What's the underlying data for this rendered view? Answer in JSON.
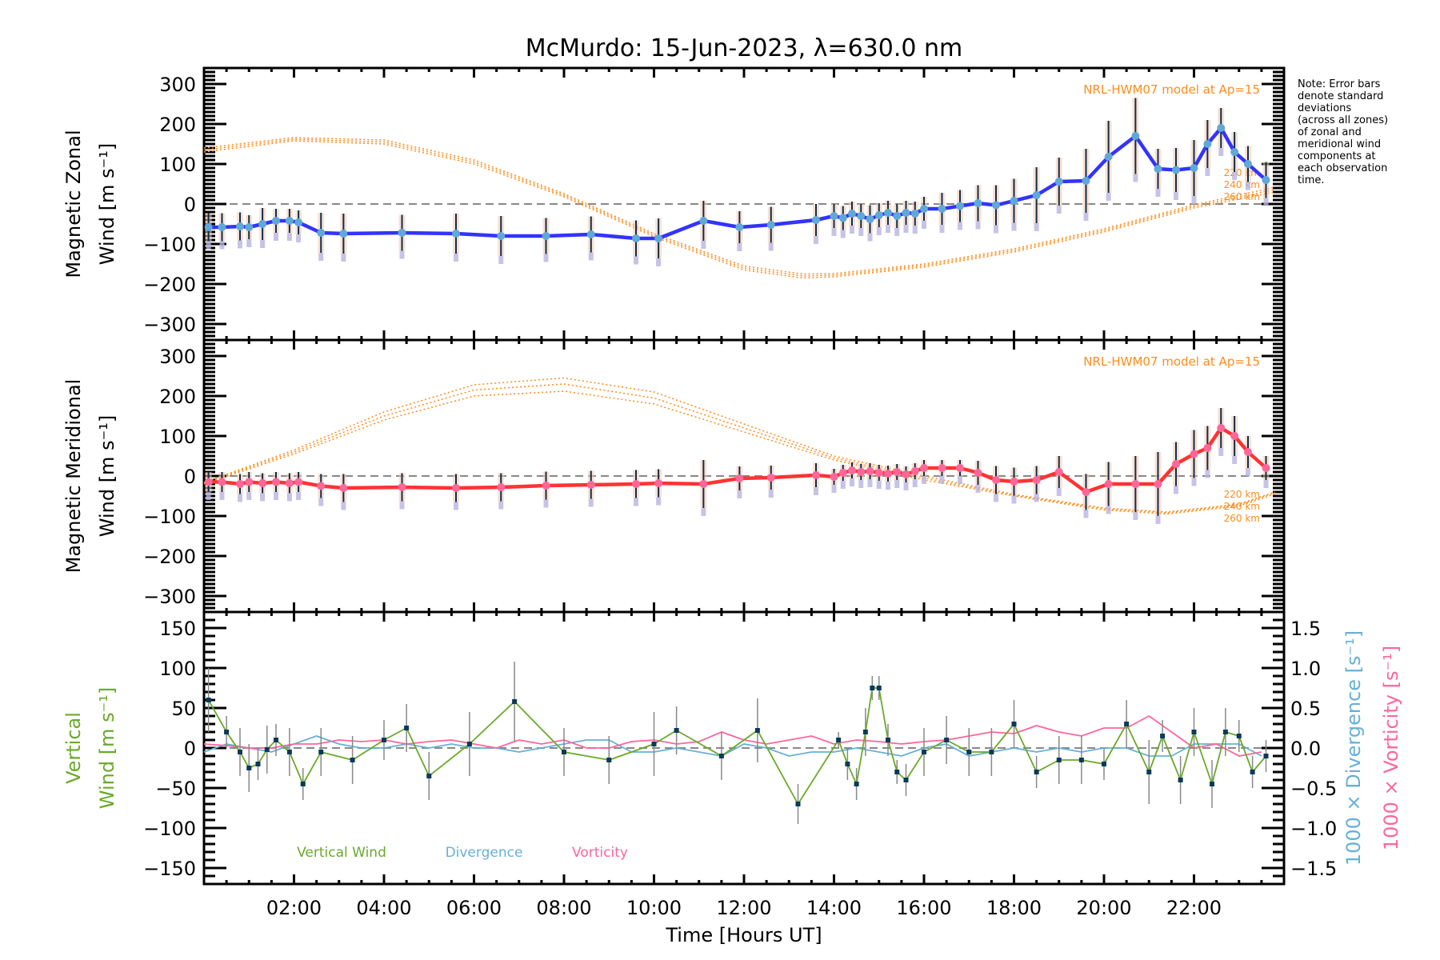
{
  "chart_data": {
    "type": "line",
    "title": "McMurdo: 15-Jun-2023, λ=630.0 nm",
    "xlabel": "Time [Hours UT]",
    "xlim": [
      0,
      24
    ],
    "x_tick_labels": [
      "02:00",
      "04:00",
      "06:00",
      "08:00",
      "10:00",
      "12:00",
      "14:00",
      "16:00",
      "18:00",
      "20:00",
      "22:00"
    ],
    "x_tick_values": [
      2,
      4,
      6,
      8,
      10,
      12,
      14,
      16,
      18,
      20,
      22
    ],
    "note": [
      "Note: Error bars",
      "denote standard",
      "deviations",
      "(across all zones)",
      "of zonal and",
      "meridional wind",
      "components at",
      "each observation",
      "time."
    ],
    "colors": {
      "zonal": "#3333ff",
      "meridional": "#ff3333",
      "marker_zonal": "#5fa8d8",
      "marker_meridional": "#ff6699",
      "model": "#ff8c1a",
      "vertical": "#6aaa2a",
      "divergence": "#66b0d8",
      "vorticity": "#ff6699",
      "errorbar": "#0b2e4a",
      "zone_points": "#b8b4e0",
      "zero_line": "#888888"
    },
    "panels": [
      {
        "id": "zonal",
        "ylabel_line1": "Magnetic Zonal",
        "ylabel_line2": "Wind [m s⁻¹]",
        "ylim": [
          -340,
          340
        ],
        "y_ticks": [
          300,
          200,
          100,
          0,
          -100,
          -200,
          -300
        ],
        "y_tick_labels": [
          "300",
          "200",
          "100",
          "0",
          "−100",
          "−200",
          "−300"
        ],
        "model_label": "NRL-HWM07 model at Ap=15",
        "model_altitudes": [
          "220 km",
          "240 km",
          "260 km"
        ],
        "series": {
          "name": "Magnetic Zonal Wind",
          "x": [
            0.1,
            0.4,
            0.8,
            1.0,
            1.3,
            1.6,
            1.9,
            2.1,
            2.6,
            3.1,
            4.4,
            5.6,
            6.6,
            7.6,
            8.6,
            9.6,
            10.1,
            11.1,
            11.9,
            12.6,
            13.6,
            14.0,
            14.2,
            14.4,
            14.6,
            14.8,
            15.0,
            15.2,
            15.4,
            15.6,
            15.8,
            16.0,
            16.4,
            16.8,
            17.2,
            17.6,
            18.0,
            18.5,
            19.0,
            19.6,
            20.1,
            20.7,
            21.2,
            21.6,
            22.0,
            22.3,
            22.6,
            22.9,
            23.2,
            23.6
          ],
          "y": [
            -58,
            -58,
            -56,
            -58,
            -50,
            -42,
            -42,
            -46,
            -72,
            -74,
            -72,
            -74,
            -80,
            -80,
            -76,
            -86,
            -86,
            -42,
            -58,
            -52,
            -40,
            -30,
            -35,
            -24,
            -30,
            -38,
            -28,
            -22,
            -30,
            -22,
            -24,
            -12,
            -12,
            -5,
            2,
            -3,
            8,
            22,
            56,
            58,
            118,
            170,
            88,
            85,
            90,
            150,
            190,
            130,
            100,
            60
          ],
          "err": [
            35,
            35,
            35,
            30,
            40,
            30,
            30,
            30,
            50,
            50,
            45,
            50,
            50,
            45,
            45,
            45,
            50,
            50,
            40,
            45,
            40,
            30,
            30,
            30,
            30,
            35,
            30,
            30,
            30,
            30,
            30,
            30,
            40,
            40,
            45,
            50,
            55,
            70,
            60,
            80,
            90,
            95,
            50,
            55,
            70,
            60,
            50,
            50,
            45,
            45
          ]
        },
        "model": {
          "x": [
            0,
            2,
            4,
            6,
            8,
            10,
            12,
            13.3,
            14,
            16,
            18,
            20,
            22,
            23.8
          ],
          "y220": [
            130,
            158,
            150,
            100,
            18,
            -82,
            -165,
            -185,
            -182,
            -158,
            -120,
            -70,
            -10,
            30
          ],
          "y240": [
            135,
            162,
            155,
            105,
            22,
            -78,
            -160,
            -180,
            -178,
            -154,
            -116,
            -66,
            -6,
            36
          ],
          "y260": [
            140,
            166,
            160,
            110,
            26,
            -74,
            -155,
            -175,
            -174,
            -150,
            -112,
            -62,
            -2,
            42
          ]
        }
      },
      {
        "id": "meridional",
        "ylabel_line1": "Magnetic Meridional",
        "ylabel_line2": "Wind [m s⁻¹]",
        "ylim": [
          -340,
          340
        ],
        "y_ticks": [
          300,
          200,
          100,
          0,
          -100,
          -200,
          -300
        ],
        "y_tick_labels": [
          "300",
          "200",
          "100",
          "0",
          "−100",
          "−200",
          "−300"
        ],
        "model_label": "NRL-HWM07 model at Ap=15",
        "model_altitudes": [
          "220 km",
          "240 km",
          "260 km"
        ],
        "series": {
          "name": "Magnetic Meridional Wind",
          "x": [
            0.1,
            0.4,
            0.8,
            1.0,
            1.3,
            1.6,
            1.9,
            2.1,
            2.6,
            3.1,
            4.4,
            5.6,
            6.6,
            7.6,
            8.6,
            9.6,
            10.1,
            11.1,
            11.9,
            12.6,
            13.6,
            14.0,
            14.2,
            14.4,
            14.6,
            14.8,
            15.0,
            15.2,
            15.4,
            15.6,
            15.8,
            16.0,
            16.4,
            16.8,
            17.2,
            17.6,
            18.0,
            18.5,
            19.0,
            19.6,
            20.1,
            20.7,
            21.2,
            21.6,
            22.0,
            22.3,
            22.6,
            22.9,
            23.2,
            23.6
          ],
          "y": [
            -15,
            -15,
            -20,
            -15,
            -18,
            -15,
            -18,
            -15,
            -25,
            -30,
            -28,
            -30,
            -28,
            -24,
            -22,
            -20,
            -18,
            -20,
            -6,
            -4,
            2,
            -2,
            8,
            14,
            10,
            12,
            8,
            6,
            10,
            4,
            12,
            20,
            20,
            20,
            8,
            -10,
            -14,
            -10,
            10,
            -40,
            -20,
            -20,
            -20,
            30,
            55,
            70,
            120,
            100,
            60,
            20
          ],
          "err": [
            25,
            25,
            25,
            25,
            25,
            25,
            25,
            25,
            30,
            35,
            35,
            35,
            35,
            35,
            35,
            35,
            35,
            60,
            30,
            30,
            30,
            20,
            20,
            20,
            20,
            20,
            20,
            20,
            20,
            20,
            20,
            20,
            20,
            20,
            30,
            35,
            35,
            35,
            40,
            45,
            55,
            70,
            80,
            55,
            60,
            55,
            50,
            50,
            40,
            30
          ]
        },
        "model": {
          "x": [
            0,
            2,
            4,
            6,
            8,
            10,
            12,
            14,
            16,
            18,
            20,
            21.4,
            23,
            23.8
          ],
          "y220": [
            -20,
            55,
            140,
            200,
            212,
            180,
            110,
            40,
            -10,
            -50,
            -85,
            -95,
            -75,
            -45
          ],
          "y240": [
            -18,
            60,
            150,
            215,
            230,
            195,
            120,
            45,
            -5,
            -48,
            -82,
            -92,
            -72,
            -42
          ],
          "y260": [
            -16,
            65,
            160,
            228,
            245,
            210,
            130,
            50,
            0,
            -46,
            -80,
            -90,
            -70,
            -40
          ]
        }
      },
      {
        "id": "vertical",
        "ylabel_line1": "Vertical",
        "ylabel_line2": "Wind [m s⁻¹]",
        "ylim": [
          -170,
          170
        ],
        "y_ticks": [
          150,
          100,
          50,
          0,
          -50,
          -100,
          -150
        ],
        "y_tick_labels": [
          "150",
          "100",
          "50",
          "0",
          "−50",
          "−100",
          "−150"
        ],
        "y2label_divergence": "1000 × Divergence [s⁻¹]",
        "y2label_vorticity": "1000 × Vorticity [s⁻¹]",
        "y2lim": [
          -1.7,
          1.7
        ],
        "y2_ticks": [
          1.5,
          1.0,
          0.5,
          0.0,
          -0.5,
          -1.0,
          -1.5
        ],
        "y2_tick_labels": [
          "1.5",
          "1.0",
          "0.5",
          "0.0",
          "−0.5",
          "−1.0",
          "−1.5"
        ],
        "legend": [
          "Vertical Wind",
          "Divergence",
          "Vorticity"
        ],
        "legend_position": "bottom-left",
        "vertical_wind": {
          "x": [
            0.1,
            0.5,
            0.8,
            1.0,
            1.2,
            1.4,
            1.6,
            1.9,
            2.2,
            2.6,
            3.3,
            4.0,
            4.5,
            5.0,
            5.9,
            6.9,
            8.0,
            9.0,
            10.0,
            10.5,
            11.5,
            12.3,
            13.2,
            14.1,
            14.3,
            14.5,
            14.7,
            14.85,
            15.0,
            15.2,
            15.4,
            15.6,
            16.0,
            16.5,
            17.0,
            17.5,
            18.0,
            18.5,
            19.0,
            19.5,
            20.0,
            20.5,
            21.0,
            21.3,
            21.7,
            22.0,
            22.4,
            22.7,
            23.0,
            23.3,
            23.6
          ],
          "y": [
            60,
            20,
            -5,
            -25,
            -20,
            -2,
            10,
            -5,
            -45,
            -5,
            -15,
            10,
            25,
            -35,
            5,
            58,
            -5,
            -15,
            5,
            22,
            -10,
            22,
            -70,
            10,
            -20,
            -45,
            20,
            75,
            75,
            10,
            -30,
            -40,
            -5,
            10,
            -5,
            -5,
            30,
            -30,
            -15,
            -15,
            -20,
            30,
            -30,
            15,
            -40,
            20,
            -45,
            20,
            15,
            -30,
            -10
          ],
          "err": [
            40,
            20,
            30,
            30,
            20,
            30,
            20,
            30,
            20,
            30,
            30,
            25,
            30,
            30,
            40,
            50,
            30,
            30,
            40,
            30,
            30,
            40,
            25,
            10,
            20,
            20,
            30,
            15,
            15,
            20,
            15,
            20,
            30,
            30,
            30,
            30,
            30,
            20,
            30,
            30,
            20,
            30,
            40,
            20,
            30,
            30,
            30,
            30,
            20,
            20,
            20
          ]
        },
        "divergence": {
          "x": [
            0,
            0.5,
            1,
            1.5,
            2,
            2.5,
            3,
            3.5,
            4,
            4.5,
            5,
            5.5,
            6,
            6.5,
            7,
            7.5,
            8,
            8.5,
            9,
            9.5,
            10,
            10.5,
            11,
            11.5,
            12,
            12.5,
            13,
            13.5,
            14,
            14.5,
            15,
            15.5,
            16,
            16.5,
            17,
            17.5,
            18,
            18.5,
            19,
            19.5,
            20,
            20.5,
            21,
            21.5,
            22,
            22.5,
            23,
            23.5
          ],
          "y": [
            -0.05,
            0.05,
            0.0,
            -0.05,
            0.05,
            0.15,
            0.05,
            0.0,
            0.0,
            0.05,
            0.0,
            0.05,
            0.0,
            0.0,
            -0.05,
            0.0,
            0.05,
            0.1,
            0.1,
            -0.05,
            -0.05,
            0.0,
            -0.05,
            -0.1,
            0.05,
            0.0,
            -0.1,
            -0.05,
            -0.05,
            0.0,
            -0.05,
            -0.1,
            0.0,
            0.05,
            -0.1,
            -0.05,
            0.0,
            -0.05,
            0.0,
            -0.05,
            0.0,
            0.0,
            -0.1,
            -0.1,
            0.05,
            0.05,
            0.05,
            -0.1
          ]
        },
        "vorticity": {
          "x": [
            0,
            0.5,
            1,
            1.5,
            2,
            2.5,
            3,
            3.5,
            4,
            4.5,
            5,
            5.5,
            6,
            6.5,
            7,
            7.5,
            8,
            8.5,
            9,
            9.5,
            10,
            10.5,
            11,
            11.5,
            12,
            12.5,
            13,
            13.5,
            14,
            14.5,
            15,
            15.5,
            16,
            16.5,
            17,
            17.5,
            18,
            18.5,
            19,
            19.5,
            20,
            20.5,
            21,
            21.5,
            22,
            22.5,
            23,
            23.5
          ],
          "y": [
            0.05,
            0.03,
            0.0,
            0.0,
            0.05,
            0.05,
            0.1,
            0.08,
            0.1,
            0.05,
            0.08,
            0.1,
            0.05,
            0.0,
            0.1,
            0.05,
            0.1,
            0.0,
            0.0,
            0.08,
            0.1,
            0.05,
            0.08,
            0.2,
            0.1,
            0.05,
            0.1,
            0.15,
            0.05,
            0.1,
            0.08,
            0.05,
            0.08,
            0.1,
            0.15,
            0.2,
            0.18,
            0.28,
            0.2,
            0.15,
            0.25,
            0.25,
            0.4,
            0.2,
            0.0,
            0.05,
            -0.1,
            -0.05
          ]
        }
      }
    ]
  }
}
